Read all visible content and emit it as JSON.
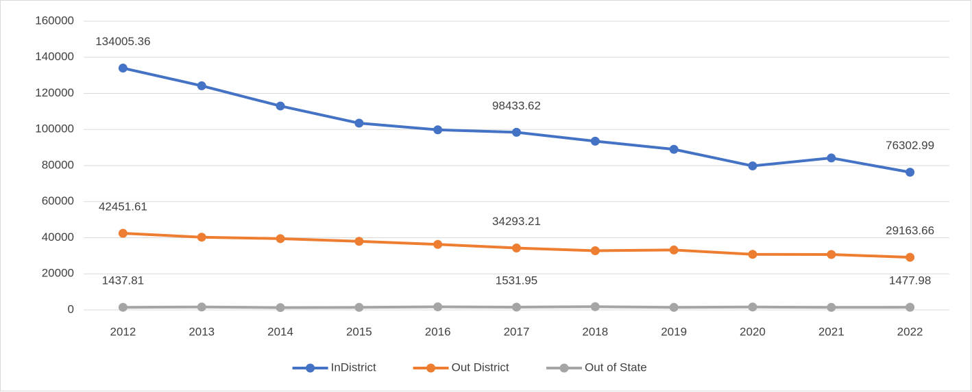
{
  "chart_data": {
    "type": "line",
    "categories": [
      "2012",
      "2013",
      "2014",
      "2015",
      "2016",
      "2017",
      "2018",
      "2019",
      "2020",
      "2021",
      "2022"
    ],
    "series": [
      {
        "name": "InDistrict",
        "color": "#4472c4",
        "values": [
          134005.36,
          124200,
          113000,
          103500,
          99800,
          98433.62,
          93500,
          89000,
          79800,
          84200,
          76302.99
        ]
      },
      {
        "name": "Out District",
        "color": "#ed7d31",
        "values": [
          42451.61,
          40300,
          39500,
          38000,
          36300,
          34293.21,
          32800,
          33200,
          30800,
          30700,
          29163.66
        ]
      },
      {
        "name": "Out of State",
        "color": "#a5a5a5",
        "values": [
          1437.81,
          1600,
          1300,
          1400,
          1700,
          1531.95,
          1800,
          1400,
          1600,
          1400,
          1477.98
        ]
      }
    ],
    "data_labels_at": [
      0,
      5,
      10
    ],
    "ylim": [
      0,
      160000
    ],
    "yticks": [
      0,
      20000,
      40000,
      60000,
      80000,
      100000,
      120000,
      140000,
      160000
    ],
    "grid": true,
    "legend": "bottom"
  }
}
